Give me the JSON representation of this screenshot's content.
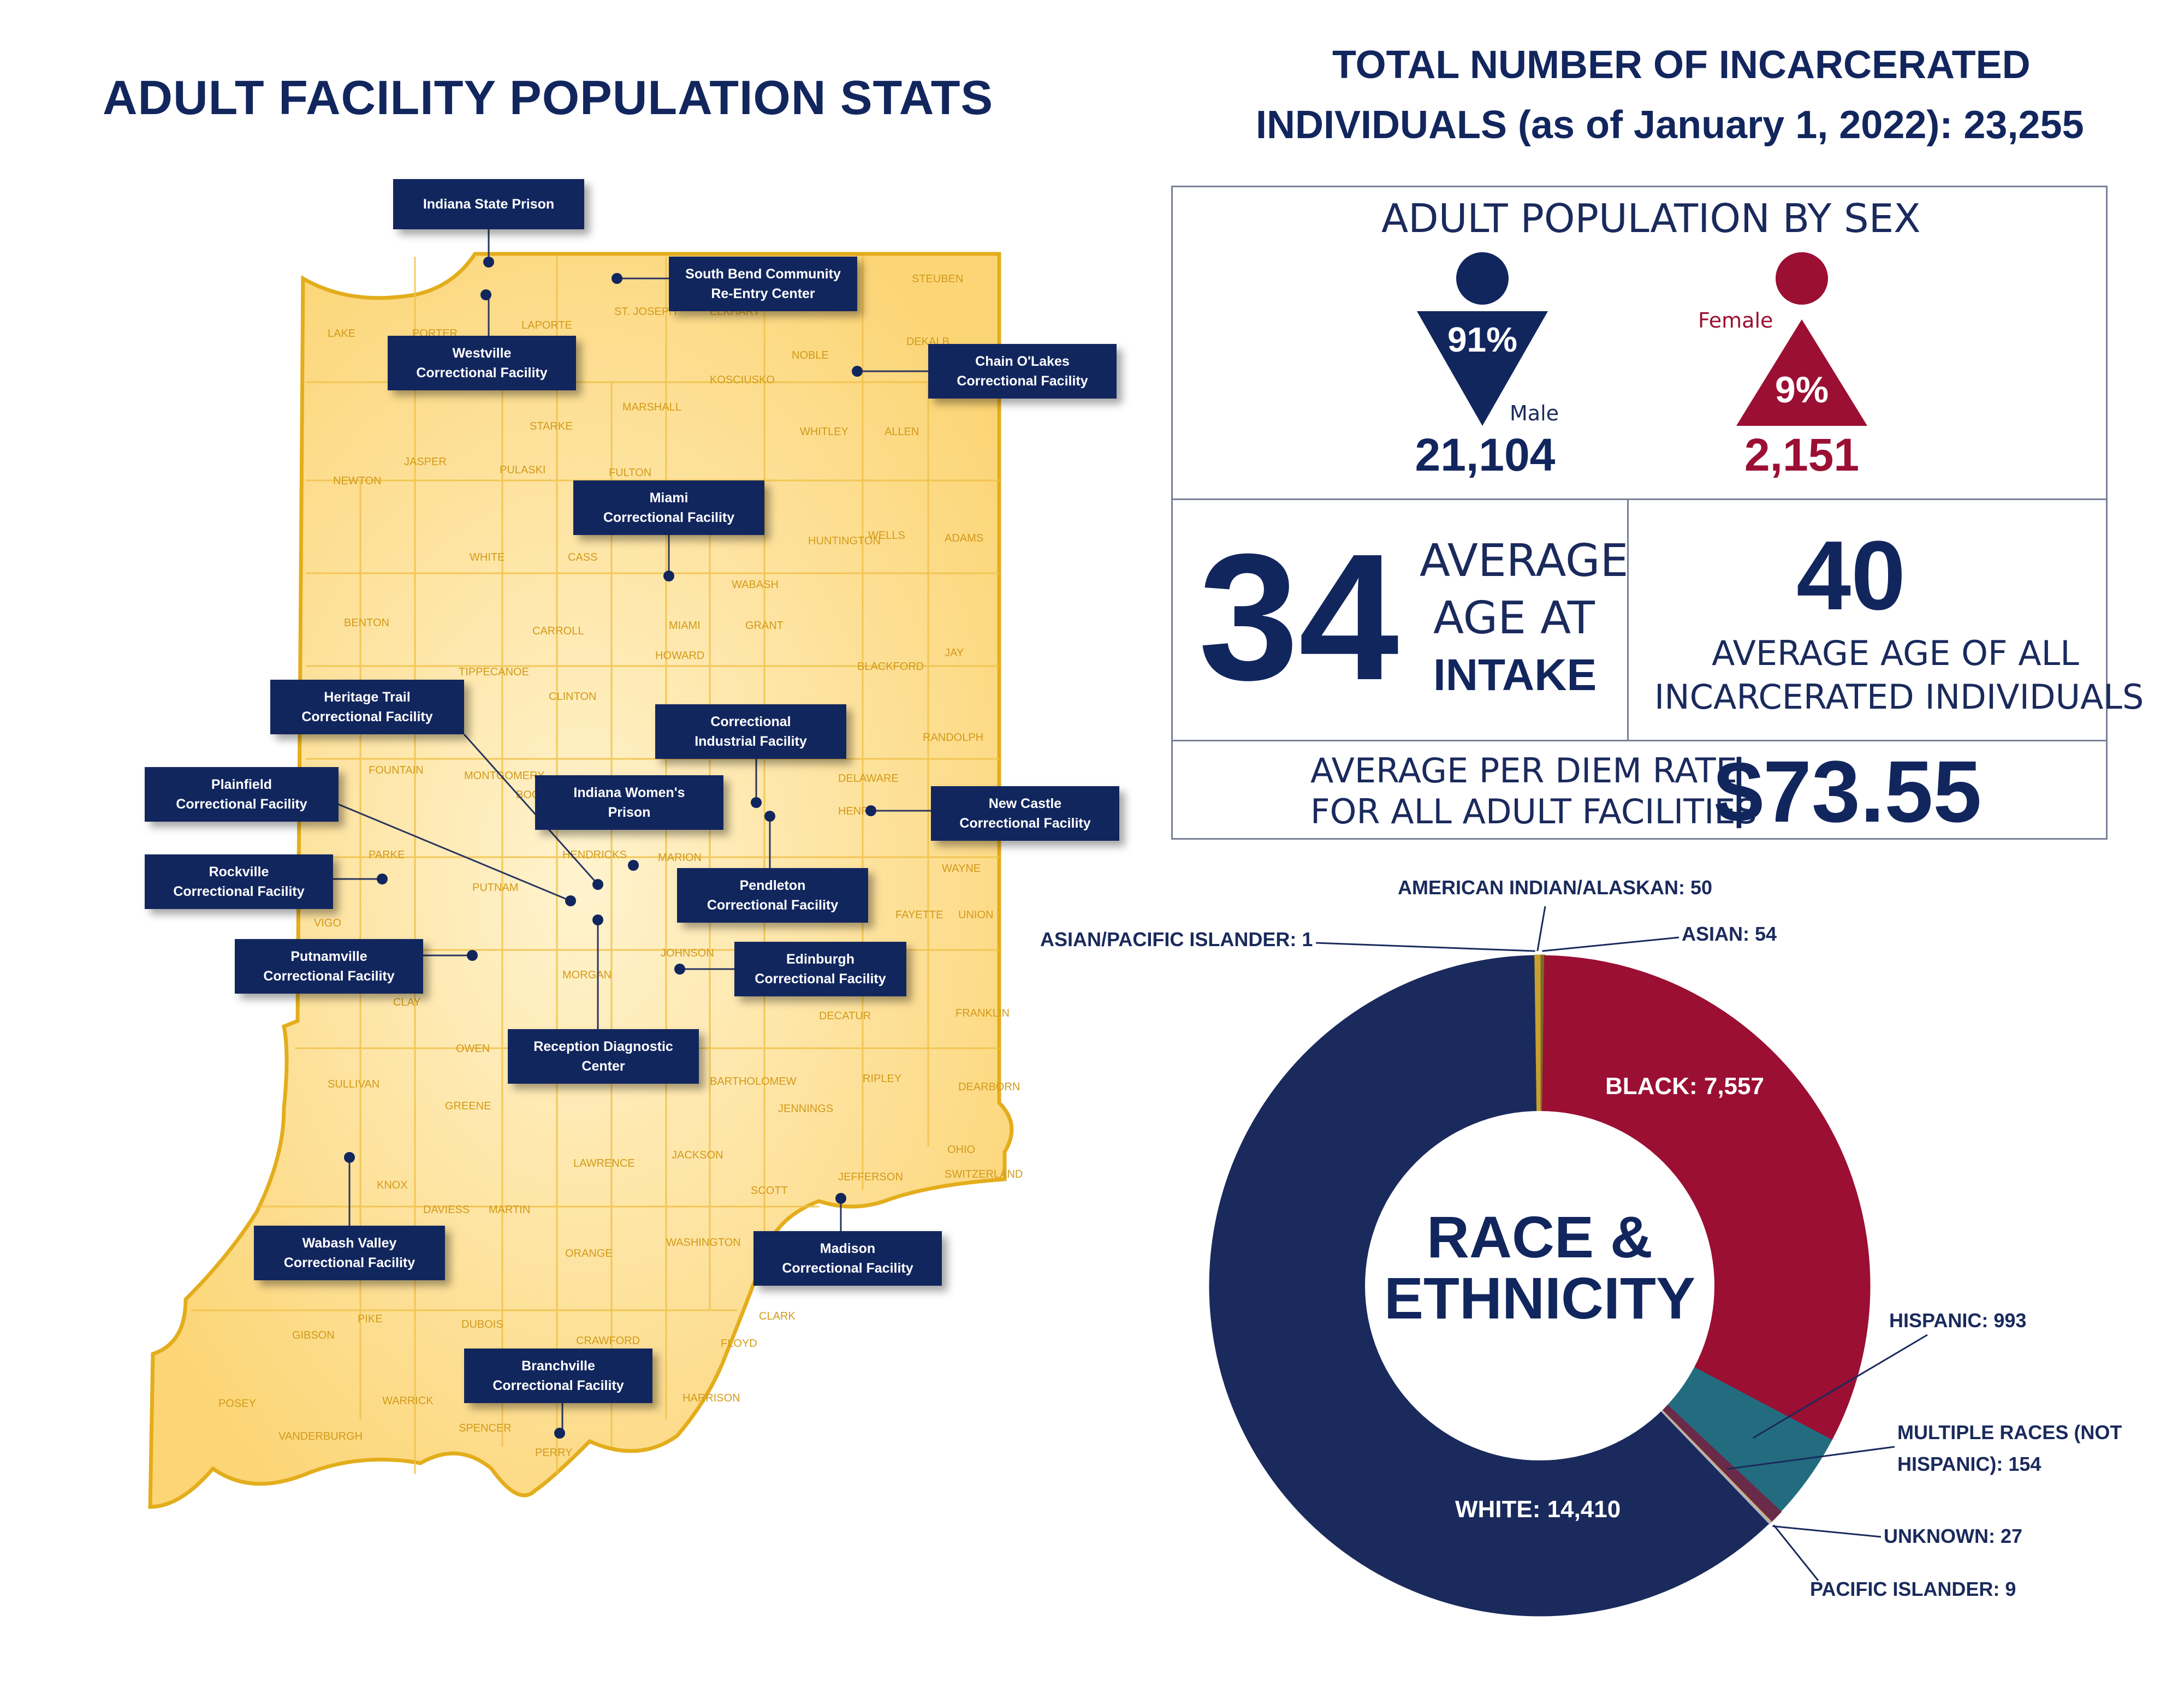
{
  "header": {
    "title": "ADULT FACILITY POPULATION STATS",
    "total_line1": "TOTAL NUMBER OF INCARCERATED",
    "total_line2": "INDIVIDUALS (as of January 1, 2022): 23,255"
  },
  "sex": {
    "heading": "ADULT POPULATION BY SEX",
    "male_pct": "91%",
    "male_label": "Male",
    "male_count": "21,104",
    "female_pct": "9%",
    "female_label": "Female",
    "female_count": "2,151",
    "male_color": "#12265e",
    "female_color": "#9b0f33"
  },
  "age": {
    "intake_value": "34",
    "intake_line1": "AVERAGE",
    "intake_line2": "AGE AT",
    "intake_line3": "INTAKE",
    "all_value": "40",
    "all_line1": "AVERAGE AGE OF ALL",
    "all_line2": "INCARCERATED INDIVIDUALS"
  },
  "per_diem": {
    "line1": "AVERAGE PER DIEM RATE",
    "line2": "FOR ALL ADULT FACILITIES",
    "value": "$73.55"
  },
  "facilities": [
    {
      "line1": "Indiana State Prison",
      "line2": ""
    },
    {
      "line1": "South Bend Community",
      "line2": "Re-Entry Center"
    },
    {
      "line1": "Westville",
      "line2": "Correctional Facility"
    },
    {
      "line1": "Chain O'Lakes",
      "line2": "Correctional Facility"
    },
    {
      "line1": "Miami",
      "line2": "Correctional Facility"
    },
    {
      "line1": "Heritage Trail",
      "line2": "Correctional Facility"
    },
    {
      "line1": "Correctional",
      "line2": "Industrial Facility"
    },
    {
      "line1": "Plainfield",
      "line2": "Correctional Facility"
    },
    {
      "line1": "Indiana Women's",
      "line2": "Prison"
    },
    {
      "line1": "New Castle",
      "line2": "Correctional Facility"
    },
    {
      "line1": "Rockville",
      "line2": "Correctional Facility"
    },
    {
      "line1": "Pendleton",
      "line2": "Correctional Facility"
    },
    {
      "line1": "Putnamville",
      "line2": "Correctional Facility"
    },
    {
      "line1": "Edinburgh",
      "line2": "Correctional Facility"
    },
    {
      "line1": "Reception Diagnostic",
      "line2": "Center"
    },
    {
      "line1": "Wabash Valley",
      "line2": "Correctional Facility"
    },
    {
      "line1": "Madison",
      "line2": "Correctional Facility"
    },
    {
      "line1": "Branchville",
      "line2": "Correctional Facility"
    }
  ],
  "counties": [
    "LAKE",
    "PORTER",
    "LAPORTE",
    "ST. JOSEPH",
    "ELKHART",
    "STEUBEN",
    "LAGRANGE",
    "NOBLE",
    "DEKALB",
    "KOSCIUSKO",
    "MARSHALL",
    "STARKE",
    "JASPER",
    "NEWTON",
    "PULASKI",
    "FULTON",
    "WHITLEY",
    "ALLEN",
    "WHITE",
    "CASS",
    "WABASH",
    "HUNTINGTON",
    "WELLS",
    "ADAMS",
    "BENTON",
    "CARROLL",
    "MIAMI",
    "GRANT",
    "HOWARD",
    "BLACKFORD",
    "JAY",
    "TIPPECANOE",
    "CLINTON",
    "RANDOLPH",
    "FOUNTAIN",
    "MONTGOMERY",
    "BOONE",
    "DELAWARE",
    "HENRY",
    "PARKE",
    "HENDRICKS",
    "MARION",
    "PUTNAM",
    "WAYNE",
    "FAYETTE",
    "UNION",
    "JOHNSON",
    "MORGAN",
    "VIGO",
    "DECATUR",
    "FRANKLIN",
    "CLAY",
    "OWEN",
    "SULLIVAN",
    "GREENE",
    "RIPLEY",
    "DEARBORN",
    "JENNINGS",
    "BARTHOLOMEW",
    "OHIO",
    "LAWRENCE",
    "JACKSON",
    "JEFFERSON",
    "SWITZERLAND",
    "KNOX",
    "DAVIESS",
    "MARTIN",
    "SCOTT",
    "ORANGE",
    "WASHINGTON",
    "CLARK",
    "GIBSON",
    "PIKE",
    "DUBOIS",
    "CRAWFORD",
    "FLOYD",
    "HARRISON",
    "POSEY",
    "VANDERBURGH",
    "WARRICK",
    "SPENCER",
    "PERRY"
  ],
  "map_colors": {
    "fill": "#fcd97a",
    "stroke": "#e3ad1c",
    "county_label": "#d39a1a"
  },
  "chart_data": {
    "type": "donut",
    "center_line1": "RACE &",
    "center_line2": "ETHNICITY",
    "series": [
      {
        "name": "ASIAN",
        "value": 54,
        "label": "ASIAN: 54",
        "color": "#7a6a2a"
      },
      {
        "name": "BLACK",
        "value": 7557,
        "label": "BLACK: 7,557",
        "color": "#9b0f33"
      },
      {
        "name": "HISPANIC",
        "value": 993,
        "label": "HISPANIC: 993",
        "color": "#236c80"
      },
      {
        "name": "MULTIPLE RACES (NOT HISPANIC)",
        "value": 154,
        "label_line1": "MULTIPLE RACES (NOT",
        "label_line2": "HISPANIC): 154",
        "color": "#6a2a4a"
      },
      {
        "name": "PACIFIC ISLANDER",
        "value": 9,
        "label": "PACIFIC ISLANDER: 9",
        "color": "#e0a020"
      },
      {
        "name": "UNKNOWN",
        "value": 27,
        "label": "UNKNOWN: 27",
        "color": "#b0b3c0"
      },
      {
        "name": "WHITE",
        "value": 14410,
        "label": "WHITE: 14,410",
        "color": "#1a2a5c"
      },
      {
        "name": "ASIAN/PACIFIC ISLANDER",
        "value": 1,
        "label": "ASIAN/PACIFIC ISLANDER: 1",
        "color": "#4a7a3a"
      },
      {
        "name": "AMERICAN INDIAN/ALASKAN",
        "value": 50,
        "label": "AMERICAN INDIAN/ALASKAN: 50",
        "color": "#c8a030"
      }
    ]
  }
}
